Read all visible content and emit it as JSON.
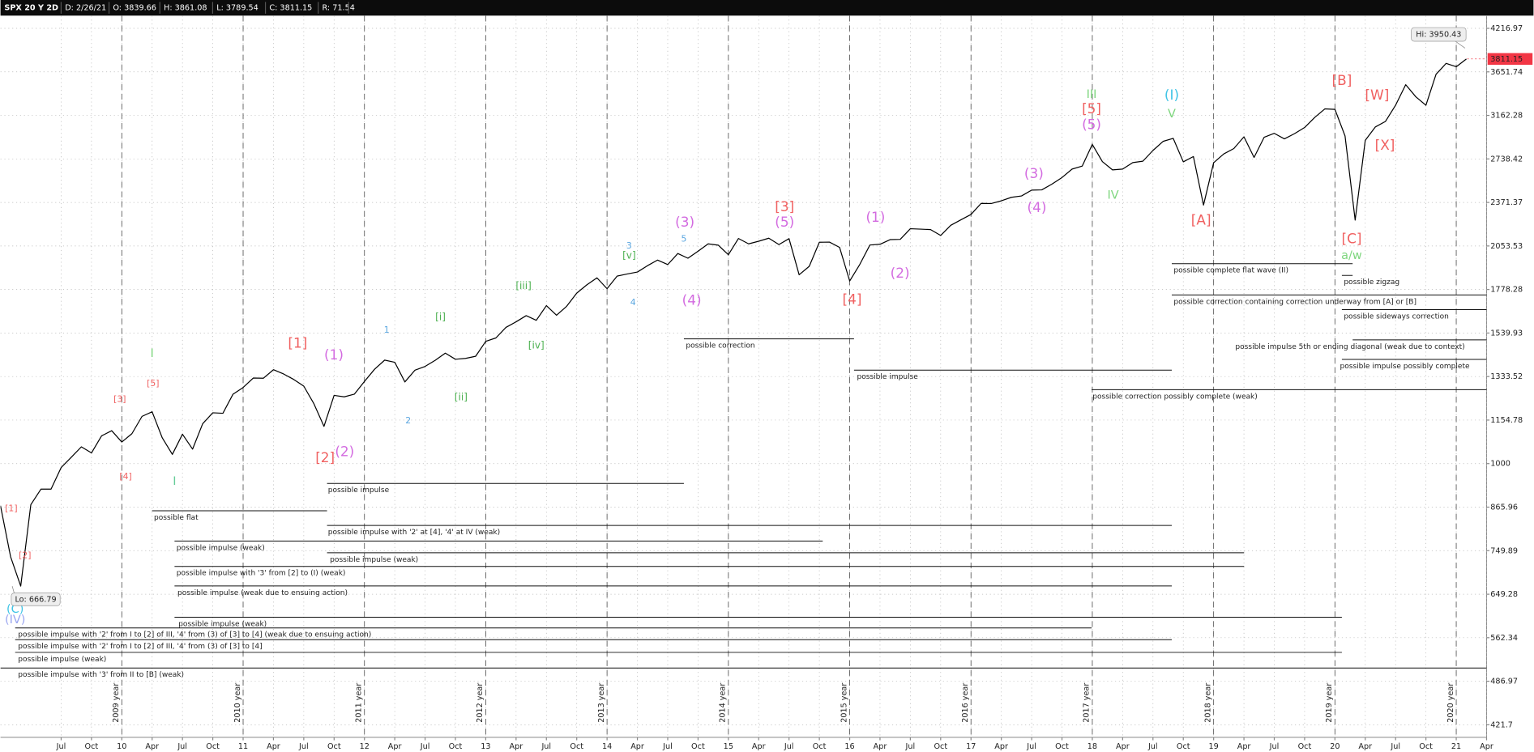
{
  "header": {
    "symbol": "SPX 20 Y 2D",
    "date": "D: 2/26/21",
    "open": "O: 3839.66",
    "high": "H: 3861.08",
    "low": "L: 3789.54",
    "close": "C: 3811.15",
    "range": "R: 71.54"
  },
  "chart_data": {
    "type": "line",
    "log_scale": true,
    "grid": true,
    "x": [
      "2009-01",
      "2009-02",
      "2009-03",
      "2009-04",
      "2009-05",
      "2009-06",
      "2009-07",
      "2009-08",
      "2009-09",
      "2009-10",
      "2009-11",
      "2009-12",
      "2010-01",
      "2010-02",
      "2010-03",
      "2010-04",
      "2010-05",
      "2010-06",
      "2010-07",
      "2010-08",
      "2010-09",
      "2010-10",
      "2010-11",
      "2010-12",
      "2011-01",
      "2011-02",
      "2011-03",
      "2011-04",
      "2011-05",
      "2011-06",
      "2011-07",
      "2011-08",
      "2011-09",
      "2011-10",
      "2011-11",
      "2011-12",
      "2012-01",
      "2012-02",
      "2012-03",
      "2012-04",
      "2012-05",
      "2012-06",
      "2012-07",
      "2012-08",
      "2012-09",
      "2012-10",
      "2012-11",
      "2012-12",
      "2013-01",
      "2013-02",
      "2013-03",
      "2013-04",
      "2013-05",
      "2013-06",
      "2013-07",
      "2013-08",
      "2013-09",
      "2013-10",
      "2013-11",
      "2013-12",
      "2014-01",
      "2014-02",
      "2014-03",
      "2014-04",
      "2014-05",
      "2014-06",
      "2014-07",
      "2014-08",
      "2014-09",
      "2014-10",
      "2014-11",
      "2014-12",
      "2015-01",
      "2015-02",
      "2015-03",
      "2015-04",
      "2015-05",
      "2015-06",
      "2015-07",
      "2015-08",
      "2015-09",
      "2015-10",
      "2015-11",
      "2015-12",
      "2016-01",
      "2016-02",
      "2016-03",
      "2016-04",
      "2016-05",
      "2016-06",
      "2016-07",
      "2016-08",
      "2016-09",
      "2016-10",
      "2016-11",
      "2016-12",
      "2017-01",
      "2017-02",
      "2017-03",
      "2017-04",
      "2017-05",
      "2017-06",
      "2017-07",
      "2017-08",
      "2017-09",
      "2017-10",
      "2017-11",
      "2017-12",
      "2018-01",
      "2018-02",
      "2018-03",
      "2018-04",
      "2018-05",
      "2018-06",
      "2018-07",
      "2018-08",
      "2018-09",
      "2018-10",
      "2018-11",
      "2018-12",
      "2019-01",
      "2019-02",
      "2019-03",
      "2019-04",
      "2019-05",
      "2019-06",
      "2019-07",
      "2019-08",
      "2019-09",
      "2019-10",
      "2019-11",
      "2019-12",
      "2020-01",
      "2020-02",
      "2020-03",
      "2020-04",
      "2020-05",
      "2020-06",
      "2020-07",
      "2020-08",
      "2020-09",
      "2020-10",
      "2020-11",
      "2020-12",
      "2021-01",
      "2021-02"
    ],
    "series": [
      {
        "color": "#000000",
        "values": [
          870,
          735,
          667,
          873,
          919,
          919,
          987,
          1021,
          1057,
          1036,
          1096,
          1115,
          1074,
          1104,
          1169,
          1187,
          1089,
          1031,
          1102,
          1049,
          1141,
          1183,
          1181,
          1258,
          1286,
          1327,
          1326,
          1364,
          1345,
          1321,
          1292,
          1219,
          1131,
          1253,
          1247,
          1258,
          1312,
          1366,
          1408,
          1398,
          1310,
          1362,
          1379,
          1407,
          1441,
          1412,
          1416,
          1426,
          1498,
          1515,
          1569,
          1598,
          1631,
          1606,
          1686,
          1633,
          1682,
          1757,
          1806,
          1848,
          1783,
          1859,
          1872,
          1884,
          1924,
          1960,
          1931,
          2003,
          1972,
          2018,
          2068,
          2059,
          1995,
          2105,
          2068,
          2086,
          2107,
          2063,
          2104,
          1867,
          1920,
          2079,
          2080,
          2044,
          1829,
          1932,
          2060,
          2065,
          2097,
          2099,
          2174,
          2171,
          2168,
          2126,
          2199,
          2239,
          2279,
          2364,
          2363,
          2384,
          2412,
          2423,
          2470,
          2472,
          2519,
          2575,
          2648,
          2674,
          2873,
          2714,
          2641,
          2648,
          2705,
          2718,
          2816,
          2902,
          2931,
          2712,
          2760,
          2351,
          2704,
          2784,
          2834,
          2946,
          2752,
          2942,
          2980,
          2926,
          2977,
          3038,
          3141,
          3231,
          3226,
          2954,
          2237,
          2912,
          3044,
          3100,
          3271,
          3500,
          3363,
          3270,
          3622,
          3756,
          3714,
          3811
        ]
      }
    ],
    "xlim": [
      "2009-01",
      "2021-04"
    ],
    "xticks": [
      {
        "value": "2009-07",
        "label": "Jul"
      },
      {
        "value": "2009-10",
        "label": "Oct"
      },
      {
        "value": "2010-01",
        "label": "10"
      },
      {
        "value": "2010-04",
        "label": "Apr"
      },
      {
        "value": "2010-07",
        "label": "Jul"
      },
      {
        "value": "2010-10",
        "label": "Oct"
      },
      {
        "value": "2011-01",
        "label": "11"
      },
      {
        "value": "2011-04",
        "label": "Apr"
      },
      {
        "value": "2011-07",
        "label": "Jul"
      },
      {
        "value": "2011-10",
        "label": "Oct"
      },
      {
        "value": "2012-01",
        "label": "12"
      },
      {
        "value": "2012-04",
        "label": "Apr"
      },
      {
        "value": "2012-07",
        "label": "Jul"
      },
      {
        "value": "2012-10",
        "label": "Oct"
      },
      {
        "value": "2013-01",
        "label": "13"
      },
      {
        "value": "2013-04",
        "label": "Apr"
      },
      {
        "value": "2013-07",
        "label": "Jul"
      },
      {
        "value": "2013-10",
        "label": "Oct"
      },
      {
        "value": "2014-01",
        "label": "14"
      },
      {
        "value": "2014-04",
        "label": "Apr"
      },
      {
        "value": "2014-07",
        "label": "Jul"
      },
      {
        "value": "2014-10",
        "label": "Oct"
      },
      {
        "value": "2015-01",
        "label": "15"
      },
      {
        "value": "2015-04",
        "label": "Apr"
      },
      {
        "value": "2015-07",
        "label": "Jul"
      },
      {
        "value": "2015-10",
        "label": "Oct"
      },
      {
        "value": "2016-01",
        "label": "16"
      },
      {
        "value": "2016-04",
        "label": "Apr"
      },
      {
        "value": "2016-07",
        "label": "Jul"
      },
      {
        "value": "2016-10",
        "label": "Oct"
      },
      {
        "value": "2017-01",
        "label": "17"
      },
      {
        "value": "2017-04",
        "label": "Apr"
      },
      {
        "value": "2017-07",
        "label": "Jul"
      },
      {
        "value": "2017-10",
        "label": "Oct"
      },
      {
        "value": "2018-01",
        "label": "18"
      },
      {
        "value": "2018-04",
        "label": "Apr"
      },
      {
        "value": "2018-07",
        "label": "Jul"
      },
      {
        "value": "2018-10",
        "label": "Oct"
      },
      {
        "value": "2019-01",
        "label": "19"
      },
      {
        "value": "2019-04",
        "label": "Apr"
      },
      {
        "value": "2019-07",
        "label": "Jul"
      },
      {
        "value": "2019-10",
        "label": "Oct"
      },
      {
        "value": "2020-01",
        "label": "20"
      },
      {
        "value": "2020-04",
        "label": "Apr"
      },
      {
        "value": "2020-07",
        "label": "Jul"
      },
      {
        "value": "2020-10",
        "label": "Oct"
      },
      {
        "value": "2021-01",
        "label": "21"
      },
      {
        "value": "2021-04",
        "label": "Apr"
      }
    ],
    "year_lines": [
      {
        "value": "2010-01",
        "label": "2009 year"
      },
      {
        "value": "2011-01",
        "label": "2010 year"
      },
      {
        "value": "2012-01",
        "label": "2011 year"
      },
      {
        "value": "2013-01",
        "label": "2012 year"
      },
      {
        "value": "2014-01",
        "label": "2013 year"
      },
      {
        "value": "2015-01",
        "label": "2014 year"
      },
      {
        "value": "2016-01",
        "label": "2015 year"
      },
      {
        "value": "2017-01",
        "label": "2016 year"
      },
      {
        "value": "2018-01",
        "label": "2017 year"
      },
      {
        "value": "2019-01",
        "label": "2018 year"
      },
      {
        "value": "2020-01",
        "label": "2019 year"
      },
      {
        "value": "2021-01",
        "label": "2020 year"
      }
    ],
    "ylim": [
      404.5,
      4398
    ],
    "yticks": [
      421.7,
      486.97,
      562.34,
      649.28,
      749.89,
      865.96,
      1000,
      1154.78,
      1333.52,
      1539.93,
      1778.28,
      2053.53,
      2371.37,
      2738.42,
      3162.28,
      3651.74,
      4216.97
    ],
    "high": {
      "value": 3950.43,
      "label": "Hi: 3950.43"
    },
    "low": {
      "value": 666.79,
      "label": "Lo: 666.79"
    },
    "last_price": 3811.15,
    "last_price_color": "#f23645",
    "annotations": [
      {
        "text": "[1]",
        "color": "#f06060"
      },
      {
        "text": "[2]",
        "color": "#f06060"
      },
      {
        "text": "[3]",
        "color": "#f06060"
      },
      {
        "text": "[4]",
        "color": "#f06060"
      },
      {
        "text": "[5]",
        "color": "#f06060"
      },
      {
        "text": "I",
        "color": "#7ed67e"
      },
      {
        "text": "I",
        "color": "#66cc99"
      },
      {
        "text": "[1]",
        "color": "#f06060"
      },
      {
        "text": "[2]",
        "color": "#f06060"
      },
      {
        "text": "(1)",
        "color": "#d36be0"
      },
      {
        "text": "(2)",
        "color": "#d36be0"
      },
      {
        "text": "1",
        "color": "#5aa6e0"
      },
      {
        "text": "2",
        "color": "#5aa6e0"
      },
      {
        "text": "[i]",
        "color": "#4cb050"
      },
      {
        "text": "[ii]",
        "color": "#4cb050"
      },
      {
        "text": "[iii]",
        "color": "#4cb050"
      },
      {
        "text": "[iv]",
        "color": "#4cb050"
      },
      {
        "text": "3",
        "color": "#5aa6e0"
      },
      {
        "text": "[v]",
        "color": "#4cb050"
      },
      {
        "text": "4",
        "color": "#5aa6e0"
      },
      {
        "text": "(3)",
        "color": "#d36be0"
      },
      {
        "text": "5",
        "color": "#5aa6e0"
      },
      {
        "text": "(4)",
        "color": "#d36be0"
      },
      {
        "text": "[3]",
        "color": "#f06060"
      },
      {
        "text": "(5)",
        "color": "#d36be0"
      },
      {
        "text": "[4]",
        "color": "#f06060"
      },
      {
        "text": "(1)",
        "color": "#d36be0"
      },
      {
        "text": "(2)",
        "color": "#d36be0"
      },
      {
        "text": "(3)",
        "color": "#d36be0"
      },
      {
        "text": "(4)",
        "color": "#d36be0"
      },
      {
        "text": "III",
        "color": "#7ed67e"
      },
      {
        "text": "[5]",
        "color": "#f06060"
      },
      {
        "text": "(5)",
        "color": "#d36be0"
      },
      {
        "text": "IV",
        "color": "#7ed67e"
      },
      {
        "text": "(I)",
        "color": "#40c4e6"
      },
      {
        "text": "V",
        "color": "#7ed67e"
      },
      {
        "text": "[A]",
        "color": "#f06060"
      },
      {
        "text": "[B]",
        "color": "#f06060"
      },
      {
        "text": "[C]",
        "color": "#f06060"
      },
      {
        "text": "a/w",
        "color": "#7ed67e"
      },
      {
        "text": "[W]",
        "color": "#f06060"
      },
      {
        "text": "[X]",
        "color": "#f06060"
      },
      {
        "text": "(C)",
        "color": "#40c4e6"
      },
      {
        "text": "(IV)",
        "color": "#9aa6f0"
      }
    ],
    "scenarios": [
      {
        "label": "possible complete flat wave (II)"
      },
      {
        "label": "possible zigzag"
      },
      {
        "label": "possible correction containing correction underway from [A] or [B]"
      },
      {
        "label": "possible sideways correction"
      },
      {
        "label": "possible impulse 5th or ending diagonal (weak due to context)"
      },
      {
        "label": "possible impulse possibly complete"
      },
      {
        "label": "possible correction"
      },
      {
        "label": "possible impulse"
      },
      {
        "label": "possible correction possibly complete (weak)"
      },
      {
        "label": "possible impulse"
      },
      {
        "label": "possible flat"
      },
      {
        "label": "possible impulse with '2' at [4], '4' at IV (weak)"
      },
      {
        "label": "possible impulse (weak)"
      },
      {
        "label": "possible impulse (weak)"
      },
      {
        "label": "possible impulse with '3' from [2] to (I) (weak)"
      },
      {
        "label": "possible impulse (weak due to ensuing action)"
      },
      {
        "label": "possible impulse (weak)"
      },
      {
        "label": "possible impulse with '2' from I to [2] of III, '4' from (3) of [3] to [4] (weak due to ensuing action)"
      },
      {
        "label": "possible impulse with '2' from I to [2] of III, '4' from (3) of [3] to [4]"
      },
      {
        "label": "possible impulse (weak)"
      },
      {
        "label": "possible impulse with '3' from II to [B] (weak)"
      }
    ]
  }
}
